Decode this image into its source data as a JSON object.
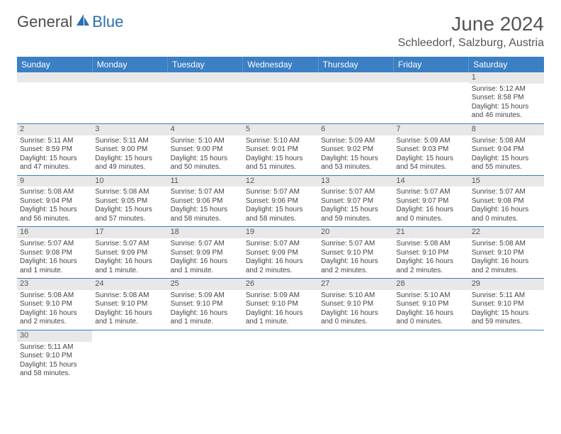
{
  "logo": {
    "part1": "General",
    "part2": "Blue"
  },
  "title": "June 2024",
  "location": "Schleedorf, Salzburg, Austria",
  "styling": {
    "header_bg": "#3b7fc4",
    "header_text": "#ffffff",
    "daynum_bg": "#e8e8e8",
    "border_color": "#3b7fc4",
    "body_text": "#444444",
    "title_color": "#555555",
    "title_fontsize": 28,
    "location_fontsize": 16,
    "cell_fontsize": 10,
    "header_fontsize": 12
  },
  "day_headers": [
    "Sunday",
    "Monday",
    "Tuesday",
    "Wednesday",
    "Thursday",
    "Friday",
    "Saturday"
  ],
  "weeks": [
    [
      {
        "n": "",
        "lines": []
      },
      {
        "n": "",
        "lines": []
      },
      {
        "n": "",
        "lines": []
      },
      {
        "n": "",
        "lines": []
      },
      {
        "n": "",
        "lines": []
      },
      {
        "n": "",
        "lines": []
      },
      {
        "n": "1",
        "lines": [
          "Sunrise: 5:12 AM",
          "Sunset: 8:58 PM",
          "Daylight: 15 hours and 46 minutes."
        ]
      }
    ],
    [
      {
        "n": "2",
        "lines": [
          "Sunrise: 5:11 AM",
          "Sunset: 8:59 PM",
          "Daylight: 15 hours and 47 minutes."
        ]
      },
      {
        "n": "3",
        "lines": [
          "Sunrise: 5:11 AM",
          "Sunset: 9:00 PM",
          "Daylight: 15 hours and 49 minutes."
        ]
      },
      {
        "n": "4",
        "lines": [
          "Sunrise: 5:10 AM",
          "Sunset: 9:00 PM",
          "Daylight: 15 hours and 50 minutes."
        ]
      },
      {
        "n": "5",
        "lines": [
          "Sunrise: 5:10 AM",
          "Sunset: 9:01 PM",
          "Daylight: 15 hours and 51 minutes."
        ]
      },
      {
        "n": "6",
        "lines": [
          "Sunrise: 5:09 AM",
          "Sunset: 9:02 PM",
          "Daylight: 15 hours and 53 minutes."
        ]
      },
      {
        "n": "7",
        "lines": [
          "Sunrise: 5:09 AM",
          "Sunset: 9:03 PM",
          "Daylight: 15 hours and 54 minutes."
        ]
      },
      {
        "n": "8",
        "lines": [
          "Sunrise: 5:08 AM",
          "Sunset: 9:04 PM",
          "Daylight: 15 hours and 55 minutes."
        ]
      }
    ],
    [
      {
        "n": "9",
        "lines": [
          "Sunrise: 5:08 AM",
          "Sunset: 9:04 PM",
          "Daylight: 15 hours and 56 minutes."
        ]
      },
      {
        "n": "10",
        "lines": [
          "Sunrise: 5:08 AM",
          "Sunset: 9:05 PM",
          "Daylight: 15 hours and 57 minutes."
        ]
      },
      {
        "n": "11",
        "lines": [
          "Sunrise: 5:07 AM",
          "Sunset: 9:06 PM",
          "Daylight: 15 hours and 58 minutes."
        ]
      },
      {
        "n": "12",
        "lines": [
          "Sunrise: 5:07 AM",
          "Sunset: 9:06 PM",
          "Daylight: 15 hours and 58 minutes."
        ]
      },
      {
        "n": "13",
        "lines": [
          "Sunrise: 5:07 AM",
          "Sunset: 9:07 PM",
          "Daylight: 15 hours and 59 minutes."
        ]
      },
      {
        "n": "14",
        "lines": [
          "Sunrise: 5:07 AM",
          "Sunset: 9:07 PM",
          "Daylight: 16 hours and 0 minutes."
        ]
      },
      {
        "n": "15",
        "lines": [
          "Sunrise: 5:07 AM",
          "Sunset: 9:08 PM",
          "Daylight: 16 hours and 0 minutes."
        ]
      }
    ],
    [
      {
        "n": "16",
        "lines": [
          "Sunrise: 5:07 AM",
          "Sunset: 9:08 PM",
          "Daylight: 16 hours and 1 minute."
        ]
      },
      {
        "n": "17",
        "lines": [
          "Sunrise: 5:07 AM",
          "Sunset: 9:09 PM",
          "Daylight: 16 hours and 1 minute."
        ]
      },
      {
        "n": "18",
        "lines": [
          "Sunrise: 5:07 AM",
          "Sunset: 9:09 PM",
          "Daylight: 16 hours and 1 minute."
        ]
      },
      {
        "n": "19",
        "lines": [
          "Sunrise: 5:07 AM",
          "Sunset: 9:09 PM",
          "Daylight: 16 hours and 2 minutes."
        ]
      },
      {
        "n": "20",
        "lines": [
          "Sunrise: 5:07 AM",
          "Sunset: 9:10 PM",
          "Daylight: 16 hours and 2 minutes."
        ]
      },
      {
        "n": "21",
        "lines": [
          "Sunrise: 5:08 AM",
          "Sunset: 9:10 PM",
          "Daylight: 16 hours and 2 minutes."
        ]
      },
      {
        "n": "22",
        "lines": [
          "Sunrise: 5:08 AM",
          "Sunset: 9:10 PM",
          "Daylight: 16 hours and 2 minutes."
        ]
      }
    ],
    [
      {
        "n": "23",
        "lines": [
          "Sunrise: 5:08 AM",
          "Sunset: 9:10 PM",
          "Daylight: 16 hours and 2 minutes."
        ]
      },
      {
        "n": "24",
        "lines": [
          "Sunrise: 5:08 AM",
          "Sunset: 9:10 PM",
          "Daylight: 16 hours and 1 minute."
        ]
      },
      {
        "n": "25",
        "lines": [
          "Sunrise: 5:09 AM",
          "Sunset: 9:10 PM",
          "Daylight: 16 hours and 1 minute."
        ]
      },
      {
        "n": "26",
        "lines": [
          "Sunrise: 5:09 AM",
          "Sunset: 9:10 PM",
          "Daylight: 16 hours and 1 minute."
        ]
      },
      {
        "n": "27",
        "lines": [
          "Sunrise: 5:10 AM",
          "Sunset: 9:10 PM",
          "Daylight: 16 hours and 0 minutes."
        ]
      },
      {
        "n": "28",
        "lines": [
          "Sunrise: 5:10 AM",
          "Sunset: 9:10 PM",
          "Daylight: 16 hours and 0 minutes."
        ]
      },
      {
        "n": "29",
        "lines": [
          "Sunrise: 5:11 AM",
          "Sunset: 9:10 PM",
          "Daylight: 15 hours and 59 minutes."
        ]
      }
    ],
    [
      {
        "n": "30",
        "lines": [
          "Sunrise: 5:11 AM",
          "Sunset: 9:10 PM",
          "Daylight: 15 hours and 58 minutes."
        ]
      },
      {
        "n": "",
        "lines": []
      },
      {
        "n": "",
        "lines": []
      },
      {
        "n": "",
        "lines": []
      },
      {
        "n": "",
        "lines": []
      },
      {
        "n": "",
        "lines": []
      },
      {
        "n": "",
        "lines": []
      }
    ]
  ]
}
